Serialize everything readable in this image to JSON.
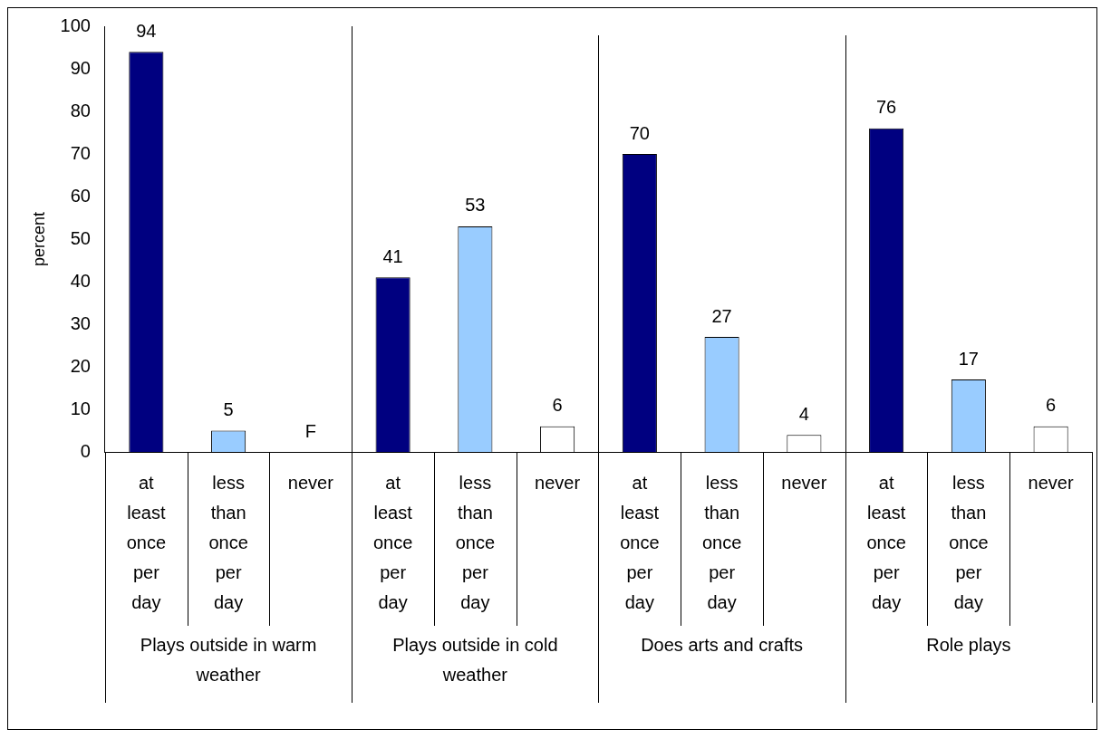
{
  "chart_data": {
    "type": "bar",
    "ylabel": "percent",
    "categories": [
      "at least once per day",
      "less than once per day",
      "never",
      "at least once per day",
      "less than once per day",
      "never",
      "at least once per day",
      "less than once per day",
      "never",
      "at least once per day",
      "less than once per day",
      "never"
    ],
    "values": [
      94,
      5,
      null,
      41,
      53,
      6,
      70,
      27,
      4,
      76,
      17,
      6
    ],
    "colors": [
      "#000080",
      "#99ccff",
      "#ffffff",
      "#000080",
      "#99ccff",
      "#ffffff",
      "#000080",
      "#99ccff",
      "#ffffff",
      "#000080",
      "#99ccff",
      "#ffffff"
    ],
    "value_labels": [
      "94",
      "5",
      "F",
      "41",
      "53",
      "6",
      "70",
      "27",
      "4",
      "76",
      "17",
      "6"
    ],
    "annotations": [
      "Plays outside in warm weather",
      "Plays outside in cold weather",
      "Does arts and crafts",
      "Role plays"
    ],
    "ylim": [
      0,
      100
    ],
    "yticks": [
      0,
      10,
      20,
      30,
      40,
      50,
      60,
      70,
      80,
      90,
      100
    ],
    "grid": false,
    "legend": false
  }
}
